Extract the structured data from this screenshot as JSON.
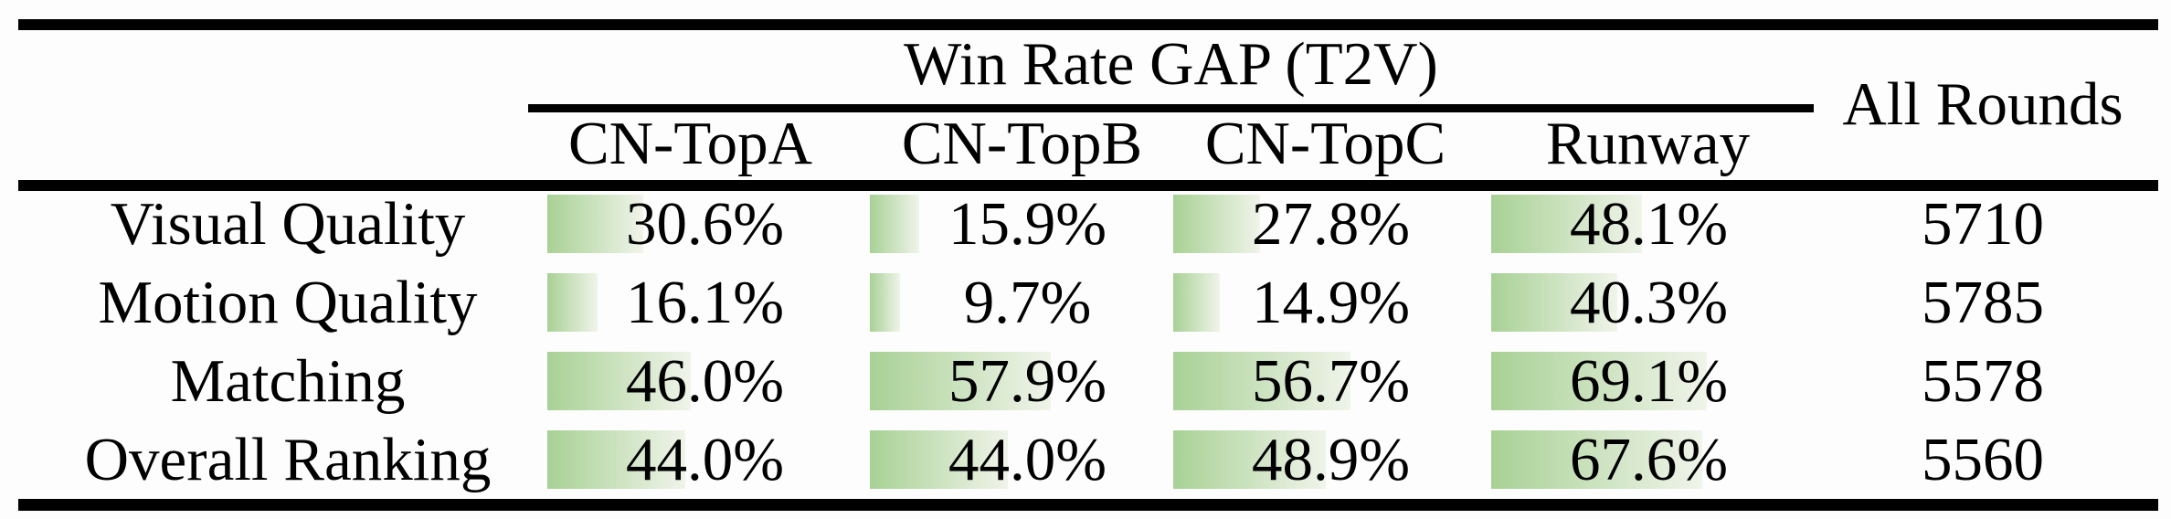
{
  "table": {
    "group_header": "Win Rate GAP (T2V)",
    "all_rounds_header": "All Rounds",
    "columns": [
      "CN-TopA",
      "CN-TopB",
      "CN-TopC",
      "Runway"
    ],
    "rows": [
      {
        "label": "Visual Quality",
        "values": [
          {
            "display": "30.6%",
            "pct": 30.6
          },
          {
            "display": "15.9%",
            "pct": 15.9
          },
          {
            "display": "27.8%",
            "pct": 27.8
          },
          {
            "display": "48.1%",
            "pct": 48.1
          }
        ],
        "all_rounds": "5710"
      },
      {
        "label": "Motion Quality",
        "values": [
          {
            "display": "16.1%",
            "pct": 16.1
          },
          {
            "display": "9.7%",
            "pct": 9.7
          },
          {
            "display": "14.9%",
            "pct": 14.9
          },
          {
            "display": "40.3%",
            "pct": 40.3
          }
        ],
        "all_rounds": "5785"
      },
      {
        "label": "Matching",
        "values": [
          {
            "display": "46.0%",
            "pct": 46.0
          },
          {
            "display": "57.9%",
            "pct": 57.9
          },
          {
            "display": "56.7%",
            "pct": 56.7
          },
          {
            "display": "69.1%",
            "pct": 69.1
          }
        ],
        "all_rounds": "5578"
      },
      {
        "label": "Overall Ranking",
        "values": [
          {
            "display": "44.0%",
            "pct": 44.0
          },
          {
            "display": "44.0%",
            "pct": 44.0
          },
          {
            "display": "48.9%",
            "pct": 48.9
          },
          {
            "display": "67.6%",
            "pct": 67.6
          }
        ],
        "all_rounds": "5560"
      }
    ],
    "bar_color_start": "#a8d195",
    "bar_color_end": "#f0f4ea",
    "rule_color": "#000000"
  },
  "chart_data": {
    "type": "bar",
    "title": "Win Rate GAP (T2V)",
    "categories": [
      "Visual Quality",
      "Motion Quality",
      "Matching",
      "Overall Ranking"
    ],
    "series": [
      {
        "name": "CN-TopA",
        "values": [
          30.6,
          16.1,
          46.0,
          44.0
        ]
      },
      {
        "name": "CN-TopB",
        "values": [
          15.9,
          9.7,
          57.9,
          44.0
        ]
      },
      {
        "name": "CN-TopC",
        "values": [
          27.8,
          14.9,
          56.7,
          48.9
        ]
      },
      {
        "name": "Runway",
        "values": [
          48.1,
          40.3,
          69.1,
          67.6
        ]
      }
    ],
    "all_rounds": {
      "label": "All Rounds",
      "values": [
        5710,
        5785,
        5578,
        5560
      ]
    },
    "unit": "%",
    "xlim": [
      0,
      100
    ],
    "layout": "bars embedded in table cells, length proportional to percent of column width"
  }
}
